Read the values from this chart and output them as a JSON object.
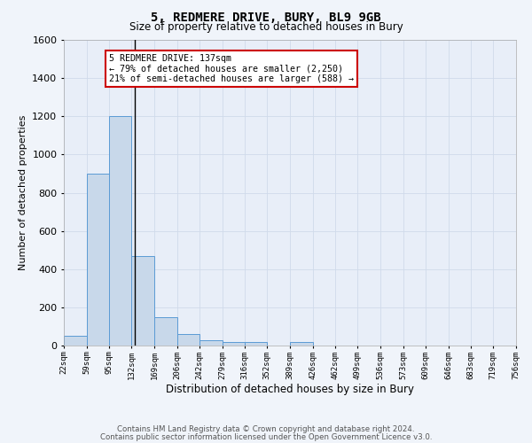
{
  "title1": "5, REDMERE DRIVE, BURY, BL9 9GB",
  "title2": "Size of property relative to detached houses in Bury",
  "xlabel": "Distribution of detached houses by size in Bury",
  "ylabel": "Number of detached properties",
  "annotation_line1": "5 REDMERE DRIVE: 137sqm",
  "annotation_line2": "← 79% of detached houses are smaller (2,250)",
  "annotation_line3": "21% of semi-detached houses are larger (588) →",
  "bar_edges": [
    22,
    59,
    95,
    132,
    169,
    206,
    242,
    279,
    316,
    352,
    389,
    426,
    462,
    499,
    536,
    573,
    609,
    646,
    683,
    719,
    756
  ],
  "bar_heights": [
    50,
    900,
    1200,
    470,
    150,
    60,
    30,
    20,
    20,
    0,
    20,
    0,
    0,
    0,
    0,
    0,
    0,
    0,
    0,
    0
  ],
  "bar_color": "#c8d8ea",
  "bar_edge_color": "#5b9bd5",
  "grid_color": "#d0daea",
  "bg_color": "#e8eef8",
  "fig_bg_color": "#f0f4fa",
  "vline_x": 137,
  "vline_color": "#000000",
  "ylim": [
    0,
    1600
  ],
  "yticks": [
    0,
    200,
    400,
    600,
    800,
    1000,
    1200,
    1400,
    1600
  ],
  "annotation_box_color": "#cc0000",
  "footer1": "Contains HM Land Registry data © Crown copyright and database right 2024.",
  "footer2": "Contains public sector information licensed under the Open Government Licence v3.0."
}
